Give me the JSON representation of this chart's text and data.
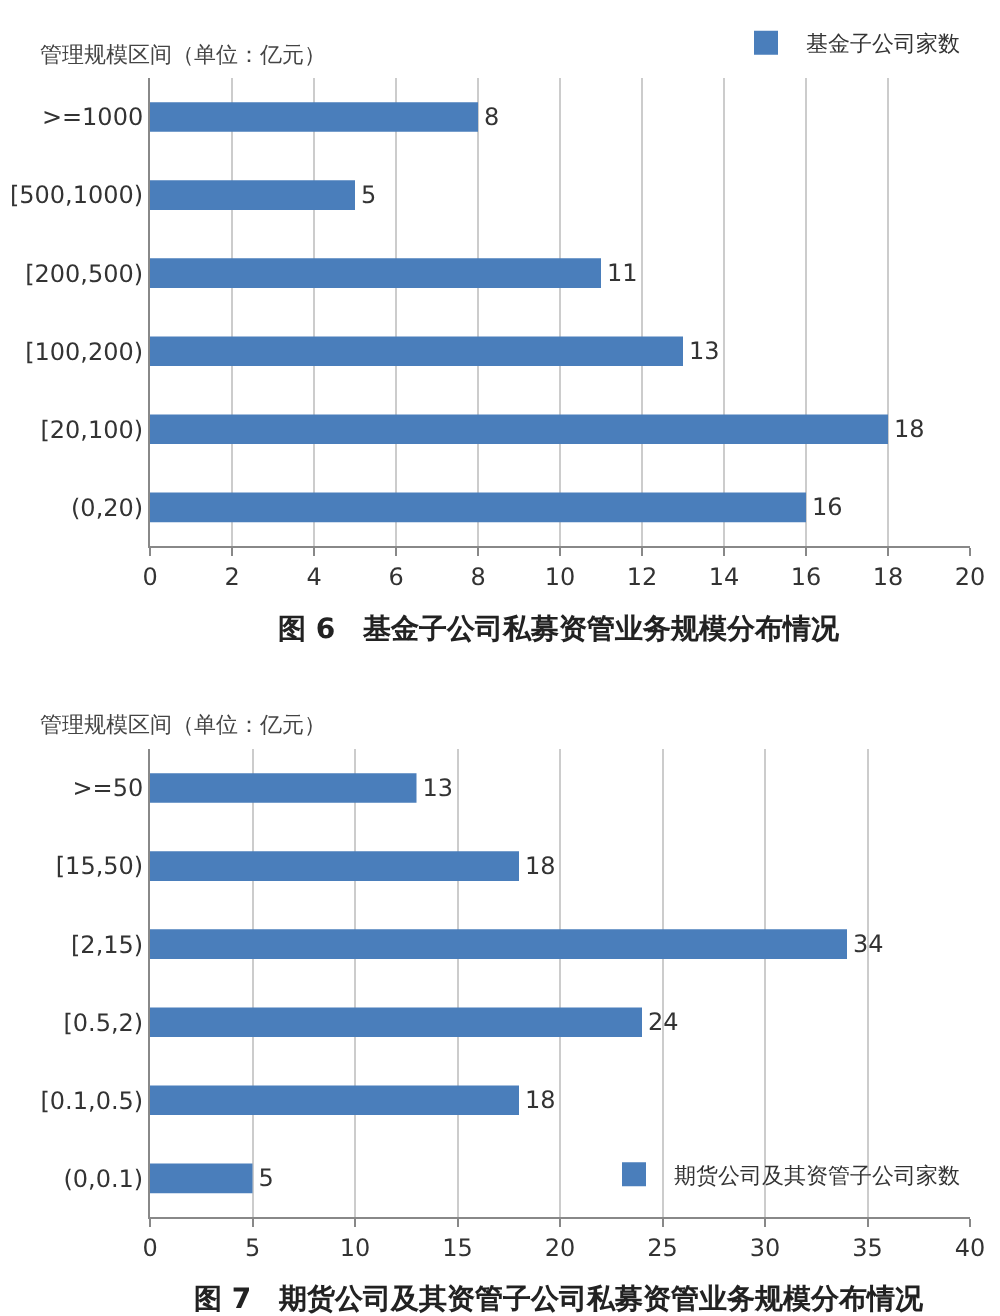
{
  "chart_data": [
    {
      "type": "bar",
      "orientation": "horizontal",
      "title": "图 6　基金子公司私募资管业务规模分布情况",
      "ylabel": "管理规模区间（单位：亿元）",
      "categories": [
        ">=1000",
        "[500,1000)",
        "[200,500)",
        "[100,200)",
        "[20,100)",
        "(0,20)"
      ],
      "series": [
        {
          "name": "基金子公司家数",
          "color": "#4a7ebb",
          "values": [
            8,
            5,
            11,
            13,
            18,
            16
          ]
        }
      ],
      "xlim": [
        0,
        20
      ],
      "xticks": [
        0,
        2,
        4,
        6,
        8,
        10,
        12,
        14,
        16,
        18,
        20
      ],
      "grid": "x",
      "legend": "top right",
      "data_labels": true
    },
    {
      "type": "bar",
      "orientation": "horizontal",
      "title": "图 7　期货公司及其资管子公司私募资管业务规模分布情况",
      "ylabel": "管理规模区间（单位：亿元）",
      "categories": [
        ">=50",
        "[15,50)",
        "[2,15)",
        "[0.5,2)",
        "[0.1,0.5)",
        "(0,0.1)"
      ],
      "series": [
        {
          "name": "期货公司及其资管子公司家数",
          "color": "#4a7ebb",
          "values": [
            13,
            18,
            34,
            24,
            18,
            5
          ]
        }
      ],
      "xlim": [
        0,
        40
      ],
      "xticks": [
        0,
        5,
        10,
        15,
        20,
        25,
        30,
        35,
        40
      ],
      "grid": "x",
      "legend": "bottom right",
      "data_labels": true
    }
  ]
}
